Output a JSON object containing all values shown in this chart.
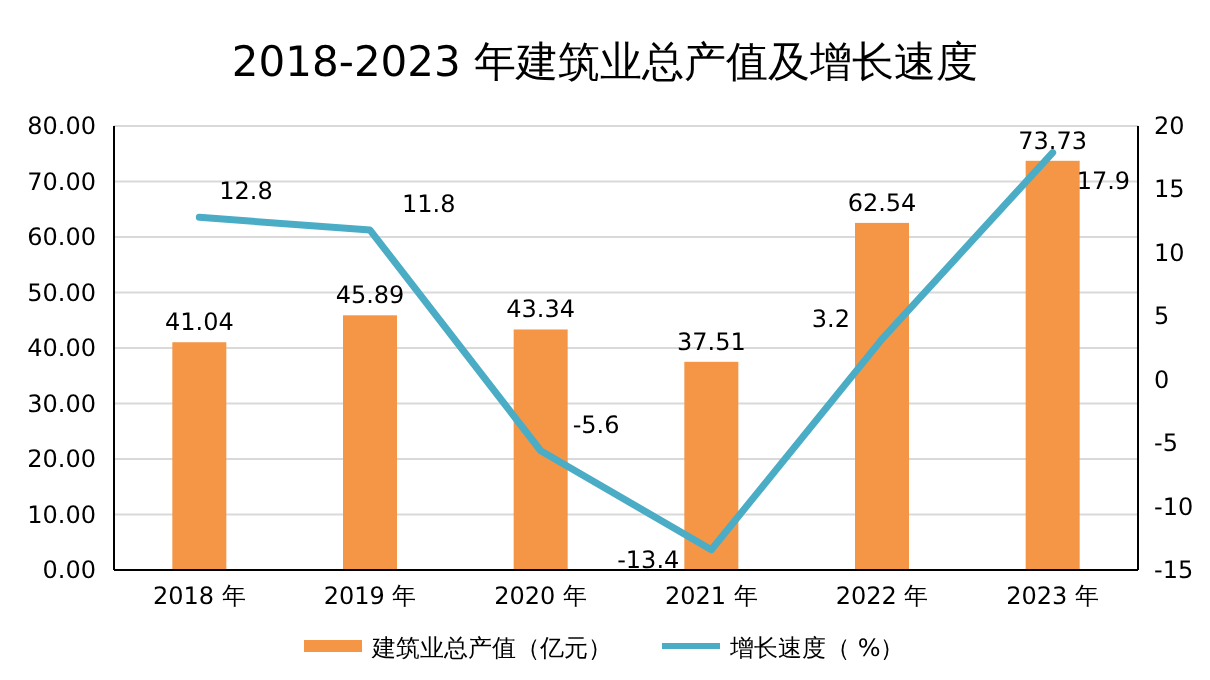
{
  "chart_data": {
    "type": "bar",
    "title": "2018-2023 年建筑业总产值及增长速度",
    "categories": [
      "2018 年",
      "2019 年",
      "2020 年",
      "2021 年",
      "2022 年",
      "2023 年"
    ],
    "series": [
      {
        "name": "建筑业总产值（亿元）",
        "color": "#f59646",
        "values": [
          41.04,
          45.89,
          43.34,
          37.51,
          62.54,
          73.73
        ]
      },
      {
        "name": "增长速度（ %）",
        "type": "line",
        "axis": "y2",
        "color": "#4bacc6",
        "values": [
          12.8,
          11.8,
          -5.6,
          -13.4,
          3.2,
          17.9
        ]
      }
    ],
    "ylim": [
      0,
      80
    ],
    "yticks": [
      {
        "value": 0,
        "label": "0.00"
      },
      {
        "value": 10,
        "label": "10.00"
      },
      {
        "value": 20,
        "label": "20.00"
      },
      {
        "value": 30,
        "label": "30.00"
      },
      {
        "value": 40,
        "label": "40.00"
      },
      {
        "value": 50,
        "label": "50.00"
      },
      {
        "value": 60,
        "label": "60.00"
      },
      {
        "value": 70,
        "label": "70.00"
      },
      {
        "value": 80,
        "label": "80.00"
      }
    ],
    "y2lim": [
      -15,
      20
    ],
    "y2ticks": [
      -15,
      -10,
      -5,
      0,
      5,
      10,
      15,
      20
    ],
    "grid": "y",
    "legend": "bottom",
    "data_labels": true,
    "marker": "none",
    "line_style": "solid"
  }
}
